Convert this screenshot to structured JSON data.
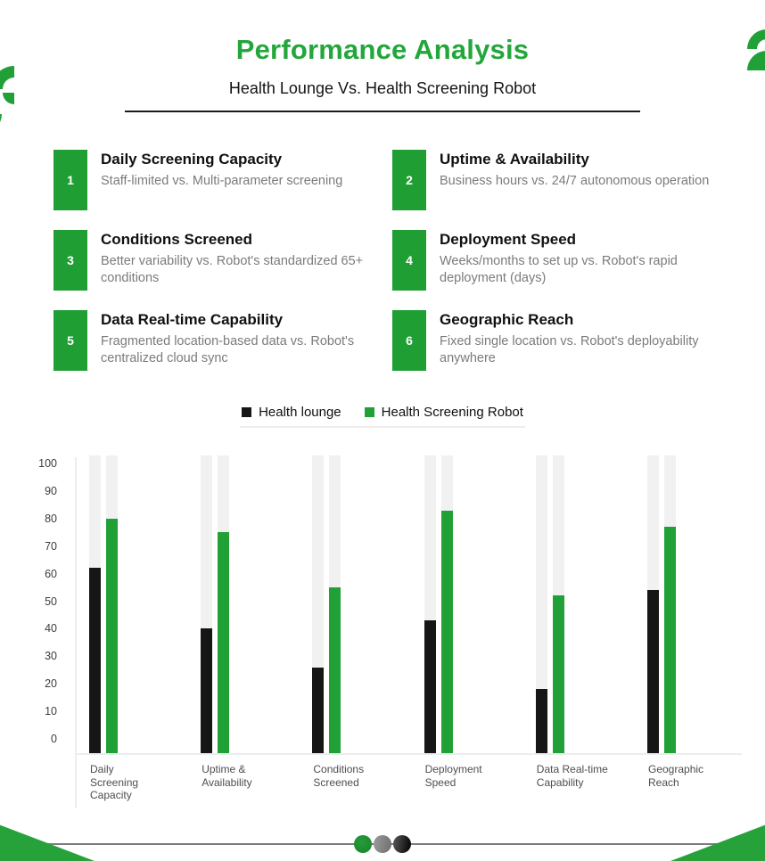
{
  "header": {
    "title": "Performance Analysis",
    "subtitle": "Health Lounge Vs. Health Screening Robot"
  },
  "features": [
    {
      "num": "1",
      "title": "Daily Screening Capacity",
      "desc": "Staff-limited vs. Multi-parameter screening"
    },
    {
      "num": "2",
      "title": "Uptime & Availability",
      "desc": "Business hours vs. 24/7 autonomous operation"
    },
    {
      "num": "3",
      "title": "Conditions Screened",
      "desc": "Better variability vs. Robot's standardized 65+ conditions"
    },
    {
      "num": "4",
      "title": "Deployment Speed",
      "desc": "Weeks/months to set up vs. Robot's rapid deployment (days)"
    },
    {
      "num": "5",
      "title": "Data Real-time Capability",
      "desc": "Fragmented location-based data vs. Robot's centralized cloud sync"
    },
    {
      "num": "6",
      "title": "Geographic Reach",
      "desc": "Fixed single location vs. Robot's deployability anywhere"
    }
  ],
  "legend": [
    {
      "label": "Health lounge",
      "color": "#161616"
    },
    {
      "label": "Health Screening Robot",
      "color": "#21a038"
    }
  ],
  "chart_data": {
    "type": "bar",
    "categories": [
      "Daily Screening Capacity",
      "Uptime & Availability",
      "Conditions Screened",
      "Deployment Speed",
      "Data Real-time Capability",
      "Geographic Reach"
    ],
    "category_lines": [
      [
        "Daily",
        "Screening",
        "Capacity"
      ],
      [
        "Uptime &",
        "Availability"
      ],
      [
        "Conditions",
        "Screened"
      ],
      [
        "Deployment",
        "Speed"
      ],
      [
        "Data Real-time",
        "Capability"
      ],
      [
        "Geographic",
        "Reach"
      ]
    ],
    "series": [
      {
        "name": "Health lounge",
        "color": "#161616",
        "values": [
          62,
          40,
          26,
          43,
          18,
          54
        ]
      },
      {
        "name": "Health Screening Robot",
        "color": "#21a038",
        "values": [
          80,
          75,
          55,
          83,
          52,
          77
        ]
      }
    ],
    "title": "",
    "xlabel": "",
    "ylabel": "",
    "ylim": [
      0,
      100
    ],
    "yticks": [
      0,
      10,
      20,
      30,
      40,
      50,
      60,
      70,
      80,
      90,
      100
    ],
    "grid": false,
    "legend_position": "top",
    "track_color": "#f1f1f1"
  },
  "pagination": {
    "dots": [
      "green",
      "gray",
      "black"
    ],
    "active": "green"
  },
  "colors": {
    "accent_green": "#1e9e33",
    "title_green": "#23a63b",
    "bar_black": "#161616",
    "track_gray": "#f1f1f1"
  }
}
